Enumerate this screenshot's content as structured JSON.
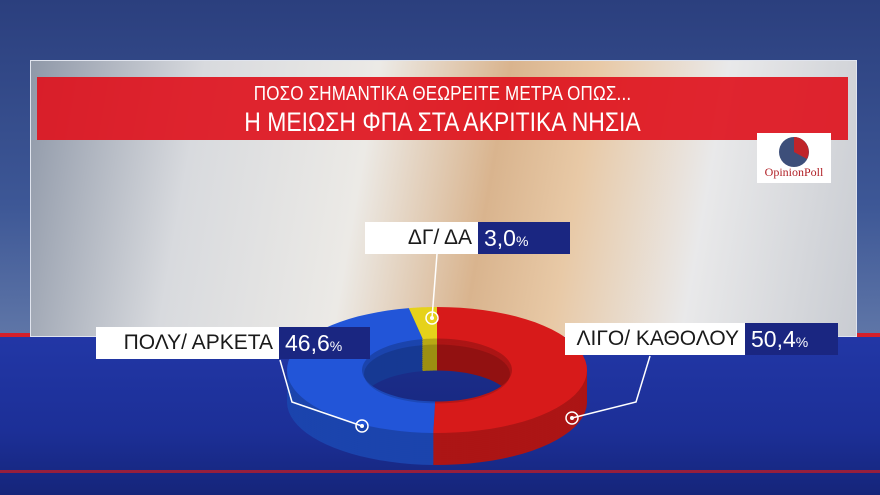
{
  "header": {
    "line1": "ΠΟΣΟ ΣΗΜΑΝΤΙΚΑ ΘΕΩΡΕΙΤΕ ΜΕΤΡΑ ΟΠΩΣ...",
    "line2": "Η ΜΕΙΩΣΗ ΦΠΑ ΣΤΑ ΑΚΡΙΤΙΚΑ ΝΗΣΙΑ"
  },
  "logo": {
    "text": "OpinionPoll"
  },
  "chart_data": {
    "type": "pie",
    "style": "3d-donut",
    "categories": [
      "ΛΙΓΟ/ ΚΑΘΟΛΟΥ",
      "ΠΟΛΥ/ ΑΡΚΕΤΑ",
      "ΔΓ/ ΔΑ"
    ],
    "values": [
      50.4,
      46.6,
      3.0
    ],
    "value_labels": [
      "50,4",
      "46,6",
      "3,0"
    ],
    "unit": "%",
    "colors": [
      "#d71a1a",
      "#2255d8",
      "#e6d21a"
    ]
  }
}
